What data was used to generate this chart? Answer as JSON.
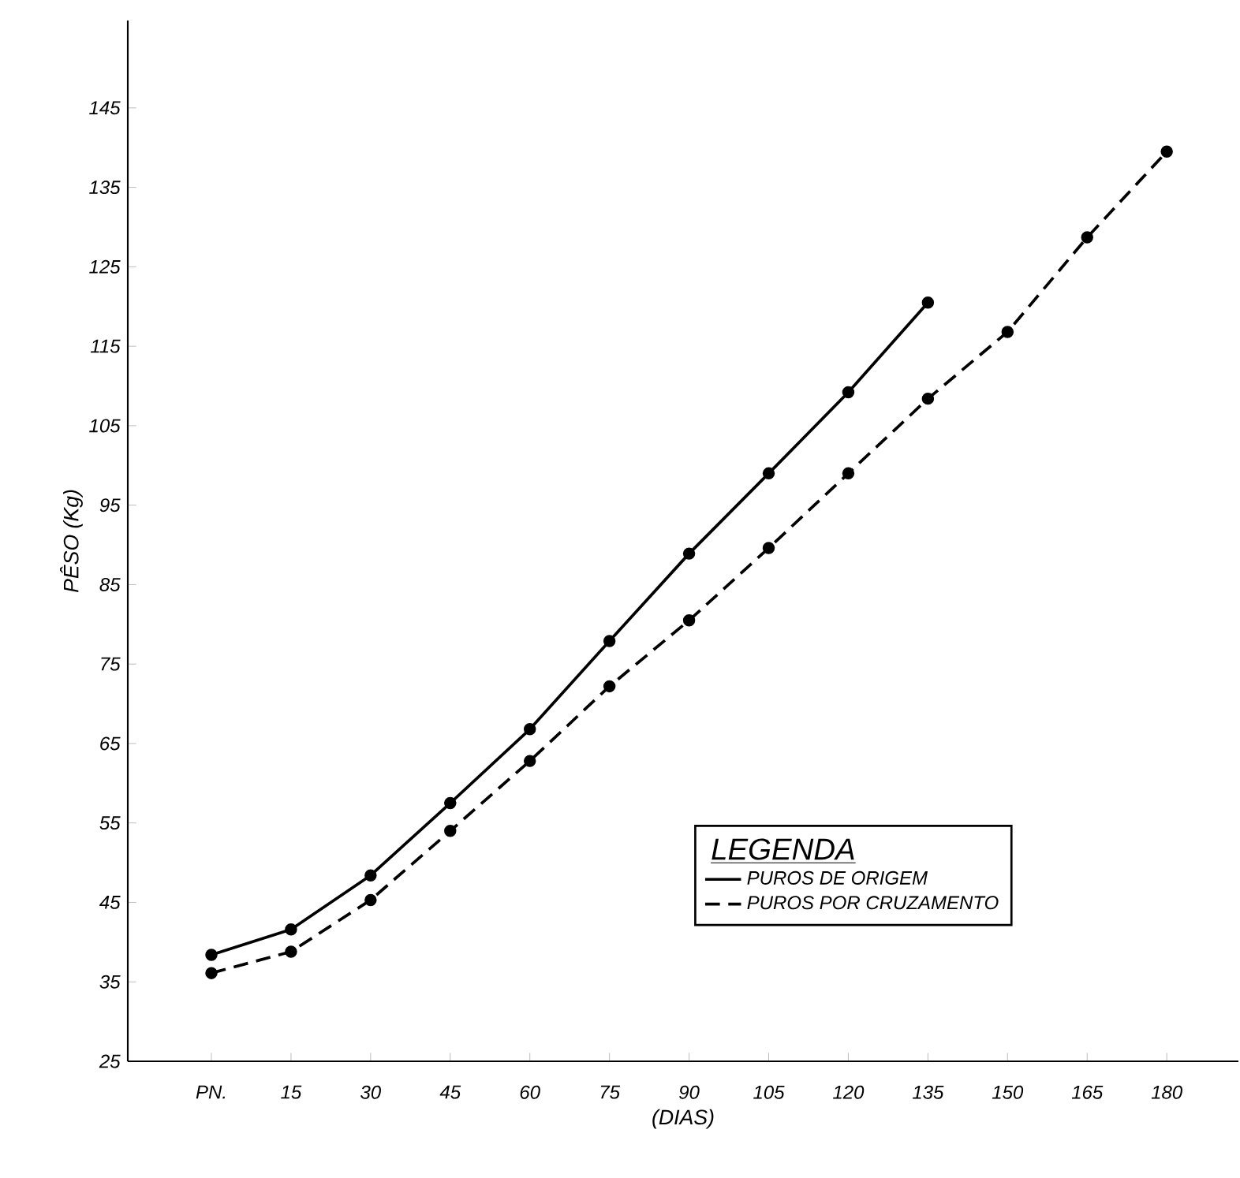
{
  "chart_data": {
    "type": "line",
    "xlabel": "(DIAS)",
    "ylabel": "PÊSO (Kg)",
    "legend_title": "LEGENDA",
    "categories": [
      "PN.",
      "15",
      "30",
      "45",
      "60",
      "75",
      "90",
      "105",
      "120",
      "135",
      "150",
      "165",
      "180"
    ],
    "ylim": [
      25,
      156
    ],
    "yticks": [
      25,
      35,
      45,
      55,
      65,
      75,
      85,
      95,
      105,
      115,
      125,
      135,
      145
    ],
    "legend": "bottom right",
    "marker": "circle",
    "series": [
      {
        "name": "PUROS DE ORIGEM",
        "color": "#000000",
        "line_style": "solid",
        "values": [
          38.4,
          41.6,
          48.4,
          57.5,
          66.8,
          77.9,
          88.9,
          99,
          109.2,
          120.5,
          null,
          null,
          null
        ]
      },
      {
        "name": "PUROS POR CRUZAMENTO",
        "color": "#000000",
        "line_style": "dashed",
        "values": [
          36.1,
          38.8,
          45.3,
          54,
          62.8,
          72.2,
          80.5,
          89.6,
          99,
          108.4,
          116.8,
          128.7,
          139.5
        ]
      }
    ]
  }
}
